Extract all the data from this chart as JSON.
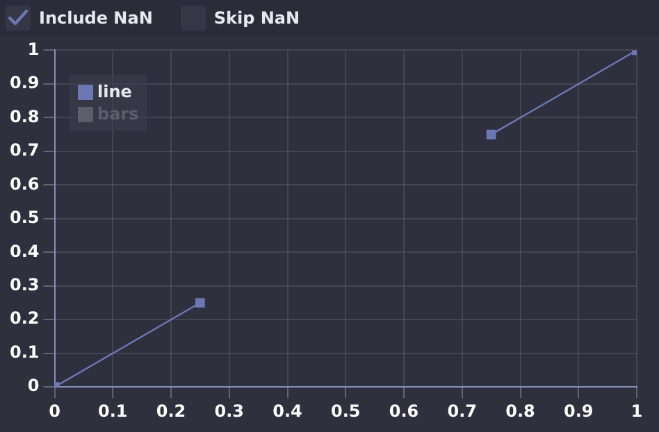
{
  "chart_data": {
    "type": "line",
    "annotations": [
      "Include NaN",
      "Skip NaN"
    ],
    "x": [
      0,
      0.25,
      0.5,
      0.75,
      1
    ],
    "series": [
      {
        "name": "line",
        "color": "#6b78b4",
        "values": [
          0,
          0.25,
          null,
          0.75,
          1
        ]
      },
      {
        "name": "bars",
        "color": "#5c5e6a",
        "values": [
          null,
          null,
          null,
          null,
          null
        ]
      }
    ],
    "xlim": [
      0,
      1
    ],
    "xticks": [
      0,
      0.1,
      0.2,
      0.3,
      0.4,
      0.5,
      0.6,
      0.7,
      0.8,
      0.9,
      1
    ],
    "ylim": [
      0,
      1
    ],
    "yticks": [
      0,
      0.1,
      0.2,
      0.3,
      0.4,
      0.5,
      0.6,
      0.7,
      0.8,
      0.9,
      1
    ],
    "grid": true,
    "legend": "top left",
    "marker": "square",
    "line_style": "solid"
  }
}
